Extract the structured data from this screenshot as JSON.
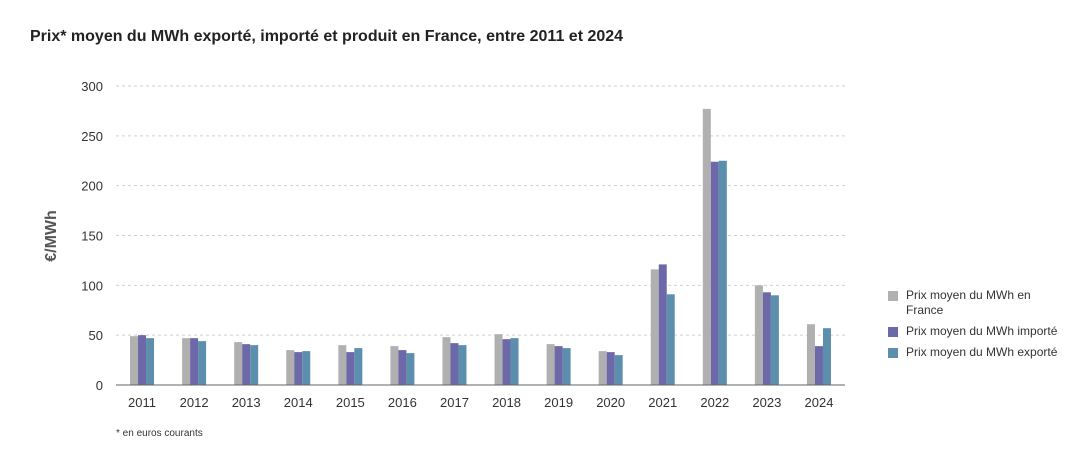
{
  "page": {
    "title": "Prix* moyen du MWh exporté, importé et produit en France, entre 2011 et 2024",
    "footnote": "* en euros courants"
  },
  "chart_data": {
    "type": "bar",
    "title": "Prix* moyen du MWh exporté, importé et produit en France, entre 2011 et 2024",
    "xlabel": "",
    "ylabel": "€/MWh",
    "ylim": [
      0,
      300
    ],
    "yticks": [
      0,
      50,
      100,
      150,
      200,
      250,
      300
    ],
    "grid": true,
    "legend_position": "right",
    "categories": [
      "2011",
      "2012",
      "2013",
      "2014",
      "2015",
      "2016",
      "2017",
      "2018",
      "2019",
      "2020",
      "2021",
      "2022",
      "2023",
      "2024"
    ],
    "series": [
      {
        "name": "Prix moyen du MWh en France",
        "color": "#b0b0b0",
        "values": [
          49,
          47,
          43,
          35,
          40,
          39,
          48,
          51,
          41,
          34,
          116,
          277,
          100,
          61
        ]
      },
      {
        "name": "Prix moyen du MWh importé",
        "color": "#6d68a8",
        "values": [
          50,
          47,
          41,
          33,
          33,
          35,
          42,
          46,
          39,
          33,
          121,
          224,
          93,
          39
        ]
      },
      {
        "name": "Prix moyen du MWh exporté",
        "color": "#5b8fad",
        "values": [
          47,
          44,
          40,
          34,
          37,
          32,
          40,
          47,
          37,
          30,
          91,
          225,
          90,
          57
        ]
      }
    ]
  }
}
